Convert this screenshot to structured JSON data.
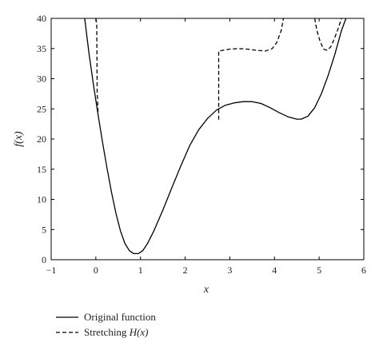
{
  "chart_data": {
    "type": "line",
    "xlabel": "x",
    "ylabel": "f(x)",
    "xlim": [
      -1,
      6
    ],
    "ylim": [
      0,
      40
    ],
    "xticks": [
      -1,
      0,
      1,
      2,
      3,
      4,
      5,
      6
    ],
    "yticks": [
      0,
      5,
      10,
      15,
      20,
      25,
      30,
      35,
      40
    ],
    "grid": false,
    "legend_position": "bottom-left",
    "series": [
      {
        "name": "Original function",
        "line_style": "solid",
        "color": "#000000",
        "points": [
          [
            -0.25,
            40.0
          ],
          [
            -0.15,
            34.0
          ],
          [
            -0.05,
            28.8
          ],
          [
            0.05,
            24.0
          ],
          [
            0.15,
            19.5
          ],
          [
            0.25,
            15.2
          ],
          [
            0.35,
            11.2
          ],
          [
            0.45,
            7.7
          ],
          [
            0.55,
            4.8
          ],
          [
            0.65,
            2.7
          ],
          [
            0.75,
            1.5
          ],
          [
            0.85,
            1.0
          ],
          [
            0.95,
            1.0
          ],
          [
            1.05,
            1.5
          ],
          [
            1.15,
            2.6
          ],
          [
            1.3,
            4.8
          ],
          [
            1.5,
            8.2
          ],
          [
            1.7,
            11.9
          ],
          [
            1.9,
            15.5
          ],
          [
            2.1,
            18.9
          ],
          [
            2.3,
            21.5
          ],
          [
            2.5,
            23.4
          ],
          [
            2.7,
            24.8
          ],
          [
            2.9,
            25.6
          ],
          [
            3.1,
            26.0
          ],
          [
            3.3,
            26.2
          ],
          [
            3.5,
            26.2
          ],
          [
            3.7,
            25.9
          ],
          [
            3.9,
            25.2
          ],
          [
            4.1,
            24.4
          ],
          [
            4.3,
            23.7
          ],
          [
            4.5,
            23.3
          ],
          [
            4.6,
            23.3
          ],
          [
            4.75,
            23.8
          ],
          [
            4.9,
            25.2
          ],
          [
            5.05,
            27.5
          ],
          [
            5.2,
            30.5
          ],
          [
            5.35,
            34.0
          ],
          [
            5.5,
            38.0
          ],
          [
            5.6,
            40.0
          ]
        ]
      },
      {
        "name": "Stretching H(x)",
        "line_style": "dashed",
        "color": "#000000",
        "segments": [
          [
            [
              0.0,
              40.0
            ],
            [
              0.02,
              39.0
            ],
            [
              0.03,
              28.0
            ],
            [
              0.05,
              24.0
            ]
          ],
          [
            [
              2.75,
              23.2
            ],
            [
              2.75,
              34.6
            ],
            [
              3.0,
              34.9
            ],
            [
              3.2,
              35.0
            ],
            [
              3.4,
              34.9
            ],
            [
              3.6,
              34.7
            ],
            [
              3.8,
              34.6
            ],
            [
              3.95,
              35.0
            ],
            [
              4.05,
              36.0
            ],
            [
              4.15,
              38.0
            ],
            [
              4.2,
              40.0
            ]
          ],
          [
            [
              4.9,
              40.0
            ],
            [
              4.95,
              38.0
            ],
            [
              5.02,
              36.2
            ],
            [
              5.1,
              34.9
            ],
            [
              5.18,
              34.7
            ],
            [
              5.26,
              35.3
            ],
            [
              5.34,
              36.6
            ],
            [
              5.42,
              38.2
            ],
            [
              5.5,
              40.0
            ]
          ]
        ]
      }
    ],
    "legend": [
      {
        "label": "Original function",
        "line_style": "solid"
      },
      {
        "label_prefix": "Stretching ",
        "label_var": "H(x)",
        "line_style": "dashed"
      }
    ]
  }
}
